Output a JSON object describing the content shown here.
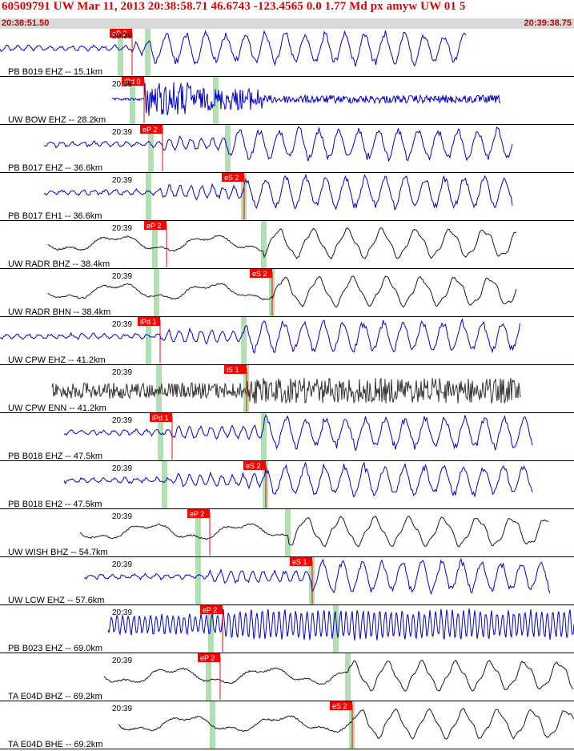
{
  "header": {
    "title": "60509791 UW Mar 11, 2013 20:38:58.71   46.6743 -123.4565  0.0 1.77 Md px amyw UW 01   5",
    "start_time": "20:38:51.50",
    "end_time": "20:39:38.75"
  },
  "colors": {
    "header_text": "#e00000",
    "trace_blue": "#0000c8",
    "trace_dark": "#2a0a30",
    "trace_gray": "#333333",
    "pick": "#ff0000",
    "pick_window": "#a8dca8"
  },
  "chart_data": {
    "type": "line",
    "title": "",
    "xlabel": "",
    "ylabel": "",
    "traces": [
      {
        "label": "PB B019 EHZ -- 15.1km",
        "tick_label": "20:39",
        "pick_label": "eP 2",
        "pick2_label": "",
        "color": "blue",
        "style": "high"
      },
      {
        "label": "UW BOW EHZ -- 28.2km",
        "tick_label": "20:39",
        "pick_label": "iPd 0",
        "pick2_label": "",
        "color": "blue",
        "style": "burst"
      },
      {
        "label": "PB B017 EHZ -- 36.6km",
        "tick_label": "20:39",
        "pick_label": "eP 2",
        "pick2_label": "",
        "color": "blue",
        "style": "high"
      },
      {
        "label": "PB B017 EH1 -- 36.6km",
        "tick_label": "20:39",
        "pick_label": "",
        "pick2_label": "eS 2",
        "color": "blue",
        "style": "high"
      },
      {
        "label": "UW RADR BHZ -- 38.4km",
        "tick_label": "20:39",
        "pick_label": "eP 2",
        "pick2_label": "",
        "color": "dark",
        "style": "low"
      },
      {
        "label": "UW RADR BHN -- 38.4km",
        "tick_label": "20:39",
        "pick_label": "",
        "pick2_label": "eS 2",
        "color": "dark",
        "style": "low"
      },
      {
        "label": "UW CPW EHZ -- 41.2km",
        "tick_label": "20:39",
        "pick_label": "iPd 1",
        "pick2_label": "",
        "color": "blue",
        "style": "high"
      },
      {
        "label": "UW CPW ENN -- 41.2km",
        "tick_label": "20:39",
        "pick_label": "",
        "pick2_label": "iS 1",
        "color": "gray",
        "style": "noise"
      },
      {
        "label": "PB B018 EHZ -- 47.5km",
        "tick_label": "20:39",
        "pick_label": "iPd 1",
        "pick2_label": "",
        "color": "blue",
        "style": "high"
      },
      {
        "label": "PB B018 EH2 -- 47.5km",
        "tick_label": "20:39",
        "pick_label": "",
        "pick2_label": "eS 2",
        "color": "blue",
        "style": "high"
      },
      {
        "label": "UW WISH BHZ -- 54.7km",
        "tick_label": "20:39",
        "pick_label": "eP 2",
        "pick2_label": "",
        "color": "dark",
        "style": "low"
      },
      {
        "label": "UW LCW EHZ -- 57.6km",
        "tick_label": "20:39",
        "pick_label": "",
        "pick2_label": "eS 1",
        "color": "blue",
        "style": "high"
      },
      {
        "label": "PB B023 EHZ -- 69.0km",
        "tick_label": "20:39",
        "pick_label": "eP 2",
        "pick2_label": "",
        "color": "blue",
        "style": "dense"
      },
      {
        "label": "TA E04D BHZ -- 69.2km",
        "tick_label": "20:39",
        "pick_label": "eP 2",
        "pick2_label": "",
        "color": "dark",
        "style": "low"
      },
      {
        "label": "TA E04D BHE -- 69.2km",
        "tick_label": "20:39",
        "pick_label": "",
        "pick2_label": "eS 2",
        "color": "dark",
        "style": "low"
      }
    ]
  }
}
